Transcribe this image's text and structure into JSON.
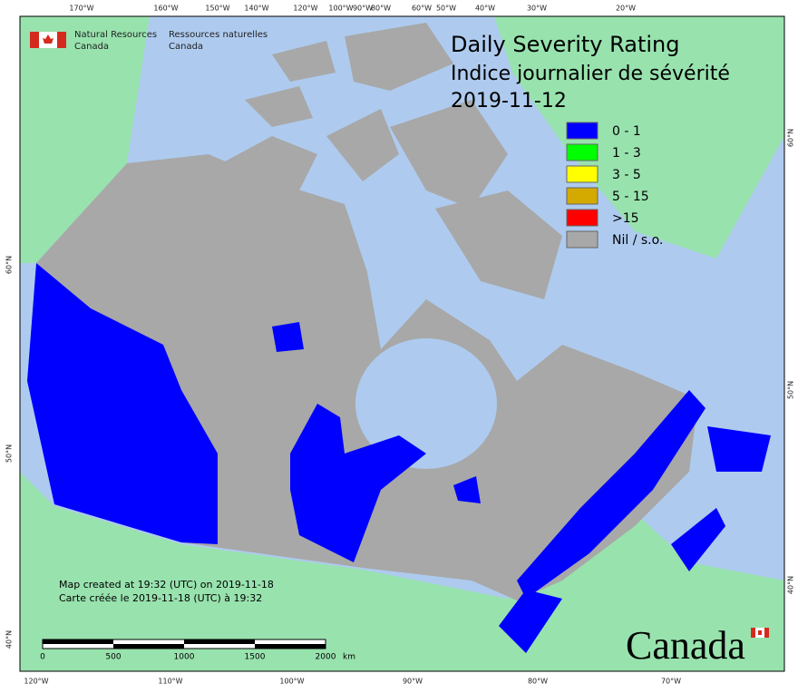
{
  "header": {
    "agency_en": [
      "Natural Resources",
      "Canada"
    ],
    "agency_fr": [
      "Ressources naturelles",
      "Canada"
    ]
  },
  "title": {
    "line1": "Daily Severity Rating",
    "line2": "Indice journalier de sévérité",
    "date": "2019-11-12"
  },
  "legend": [
    {
      "label": "0 - 1",
      "color": "#0000ff"
    },
    {
      "label": "1 - 3",
      "color": "#00ff00"
    },
    {
      "label": "3 - 5",
      "color": "#ffff00"
    },
    {
      "label": "5 - 15",
      "color": "#d4aa00"
    },
    {
      "label": ">15",
      "color": "#ff0000"
    },
    {
      "label": "Nil / s.o.",
      "color": "#a8a8a8"
    }
  ],
  "graticule": {
    "top": [
      "170°W",
      "160°W",
      "150°W",
      "140°W",
      "120°W",
      "100°W",
      "90°W",
      "80°W",
      "60°W",
      "50°W",
      "40°W",
      "30°W",
      "20°W"
    ],
    "bottom": [
      "120°W",
      "110°W",
      "100°W",
      "90°W",
      "80°W",
      "70°W"
    ],
    "left": [
      "60°N",
      "50°N",
      "40°N"
    ],
    "right": [
      "60°N",
      "50°N",
      "40°N"
    ]
  },
  "notes": [
    "Map created at 19:32 (UTC) on 2019-11-18",
    "Carte créée le 2019-11-18 (UTC) à 19:32"
  ],
  "scale_bar": {
    "labels": [
      "0",
      "500",
      "1000",
      "1500",
      "2000"
    ],
    "unit": "km"
  },
  "wordmark": "Canada"
}
